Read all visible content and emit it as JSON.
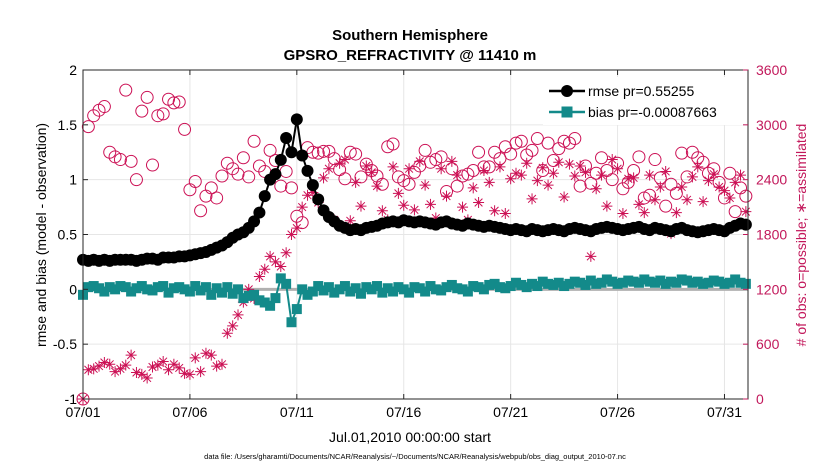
{
  "chart_data": {
    "type": "line",
    "title": "Southern Hemisphere",
    "subtitle": "GPSRO_REFRACTIVITY @ 11410 m",
    "xlabel": "Jul.01,2010 00:00:00 start",
    "ylabel": "rmse and bias (model - observation)",
    "ylabel_right": "# of obs: o=possible; ∗=assimilated",
    "footnote": "data file: /Users/gharamti/Documents/NCAR/Reanalysis/~/Documents/NCAR/Reanalysis/webpub/obs_diag_output_2010-07.nc",
    "x_range": [
      1,
      32.1
    ],
    "ylim": [
      -1,
      2
    ],
    "ylim_right": [
      0,
      3600
    ],
    "xticks": [
      1,
      6,
      11,
      16,
      21,
      26,
      31
    ],
    "xtick_labels": [
      "07/01",
      "07/06",
      "07/11",
      "07/16",
      "07/21",
      "07/26",
      "07/31"
    ],
    "yticks_left": [
      -1,
      -0.5,
      0,
      0.5,
      1,
      1.5,
      2
    ],
    "ytick_labels_left": [
      "-1",
      "-0.5",
      "0",
      "0.5",
      "1",
      "1.5",
      "2"
    ],
    "yticks_right": [
      0,
      600,
      1200,
      1800,
      2400,
      3000,
      3600
    ],
    "ytick_labels_right": [
      "0",
      "600",
      "1200",
      "1800",
      "2400",
      "3000",
      "3600"
    ],
    "grid": true,
    "legend_position": "top-right",
    "colors": {
      "rmse": "#000000",
      "bias": "#138a8a",
      "obs": "#cc1155",
      "zero_line": "#b0b0b0"
    },
    "series": [
      {
        "name": "rmse pr=0.55255",
        "axis": "left",
        "marker": "circle",
        "x": [
          1,
          1.25,
          1.5,
          1.75,
          2,
          2.25,
          2.5,
          2.75,
          3,
          3.25,
          3.5,
          3.75,
          4,
          4.25,
          4.5,
          4.75,
          5,
          5.25,
          5.5,
          5.75,
          6,
          6.25,
          6.5,
          6.75,
          7,
          7.25,
          7.5,
          7.75,
          8,
          8.25,
          8.5,
          8.75,
          9,
          9.25,
          9.5,
          9.75,
          10,
          10.25,
          10.5,
          10.75,
          11,
          11.25,
          11.5,
          11.75,
          12,
          12.25,
          12.5,
          12.75,
          13,
          13.25,
          13.5,
          13.75,
          14,
          14.25,
          14.5,
          14.75,
          15,
          15.25,
          15.5,
          15.75,
          16,
          16.25,
          16.5,
          16.75,
          17,
          17.25,
          17.5,
          17.75,
          18,
          18.25,
          18.5,
          18.75,
          19,
          19.25,
          19.5,
          19.75,
          20,
          20.25,
          20.5,
          20.75,
          21,
          21.25,
          21.5,
          21.75,
          22,
          22.25,
          22.5,
          22.75,
          23,
          23.25,
          23.5,
          23.75,
          24,
          24.25,
          24.5,
          24.75,
          25,
          25.25,
          25.5,
          25.75,
          26,
          26.25,
          26.5,
          26.75,
          27,
          27.25,
          27.5,
          27.75,
          28,
          28.25,
          28.5,
          28.75,
          29,
          29.25,
          29.5,
          29.75,
          30,
          30.25,
          30.5,
          30.75,
          31,
          31.25,
          31.5,
          31.75,
          32
        ],
        "values": [
          0.27,
          0.26,
          0.27,
          0.26,
          0.27,
          0.26,
          0.27,
          0.27,
          0.27,
          0.27,
          0.26,
          0.27,
          0.28,
          0.28,
          0.27,
          0.29,
          0.29,
          0.29,
          0.3,
          0.3,
          0.31,
          0.32,
          0.33,
          0.34,
          0.36,
          0.38,
          0.4,
          0.43,
          0.47,
          0.5,
          0.52,
          0.56,
          0.62,
          0.7,
          0.85,
          1.0,
          1.05,
          1.18,
          1.38,
          1.25,
          1.55,
          1.22,
          1.08,
          0.95,
          0.82,
          0.72,
          0.66,
          0.62,
          0.58,
          0.56,
          0.54,
          0.55,
          0.54,
          0.56,
          0.57,
          0.58,
          0.6,
          0.61,
          0.62,
          0.61,
          0.63,
          0.62,
          0.61,
          0.62,
          0.61,
          0.6,
          0.59,
          0.61,
          0.62,
          0.6,
          0.59,
          0.58,
          0.6,
          0.59,
          0.58,
          0.57,
          0.58,
          0.57,
          0.56,
          0.55,
          0.54,
          0.55,
          0.54,
          0.53,
          0.55,
          0.54,
          0.53,
          0.54,
          0.55,
          0.54,
          0.53,
          0.55,
          0.56,
          0.55,
          0.54,
          0.53,
          0.55,
          0.56,
          0.57,
          0.56,
          0.55,
          0.54,
          0.55,
          0.56,
          0.57,
          0.55,
          0.54,
          0.56,
          0.55,
          0.54,
          0.53,
          0.55,
          0.56,
          0.54,
          0.53,
          0.52,
          0.53,
          0.54,
          0.55,
          0.54,
          0.53,
          0.56,
          0.58,
          0.6,
          0.59
        ]
      },
      {
        "name": "bias pr=-0.00087663",
        "axis": "left",
        "marker": "square",
        "x": [
          1,
          1.25,
          1.5,
          1.75,
          2,
          2.25,
          2.5,
          2.75,
          3,
          3.25,
          3.5,
          3.75,
          4,
          4.25,
          4.5,
          4.75,
          5,
          5.25,
          5.5,
          5.75,
          6,
          6.25,
          6.5,
          6.75,
          7,
          7.25,
          7.5,
          7.75,
          8,
          8.25,
          8.5,
          8.75,
          9,
          9.25,
          9.5,
          9.75,
          10,
          10.25,
          10.5,
          10.75,
          11,
          11.25,
          11.5,
          11.75,
          12,
          12.25,
          12.5,
          12.75,
          13,
          13.25,
          13.5,
          13.75,
          14,
          14.25,
          14.5,
          14.75,
          15,
          15.25,
          15.5,
          15.75,
          16,
          16.25,
          16.5,
          16.75,
          17,
          17.25,
          17.5,
          17.75,
          18,
          18.25,
          18.5,
          18.75,
          19,
          19.25,
          19.5,
          19.75,
          20,
          20.25,
          20.5,
          20.75,
          21,
          21.25,
          21.5,
          21.75,
          22,
          22.25,
          22.5,
          22.75,
          23,
          23.25,
          23.5,
          23.75,
          24,
          24.25,
          24.5,
          24.75,
          25,
          25.25,
          25.5,
          25.75,
          26,
          26.25,
          26.5,
          26.75,
          27,
          27.25,
          27.5,
          27.75,
          28,
          28.25,
          28.5,
          28.75,
          29,
          29.25,
          29.5,
          29.75,
          30,
          30.25,
          30.5,
          30.75,
          31,
          31.25,
          31.5,
          31.75,
          32
        ],
        "values": [
          -0.05,
          0.02,
          0.03,
          0.01,
          -0.02,
          0.02,
          0.0,
          0.03,
          0.02,
          -0.02,
          0.01,
          0.03,
          0.0,
          -0.01,
          0.02,
          0.03,
          -0.03,
          0.01,
          0.02,
          0.0,
          -0.02,
          0.03,
          -0.01,
          0.02,
          -0.05,
          0.01,
          -0.03,
          0.02,
          -0.04,
          0.0,
          -0.08,
          -0.06,
          -0.05,
          -0.1,
          -0.12,
          -0.15,
          -0.08,
          0.1,
          0.05,
          -0.3,
          -0.18,
          0.0,
          -0.05,
          -0.02,
          0.03,
          -0.01,
          0.02,
          -0.03,
          0.0,
          0.03,
          -0.02,
          0.01,
          -0.04,
          0.02,
          0.0,
          0.03,
          -0.03,
          0.01,
          -0.02,
          0.02,
          0.0,
          -0.03,
          0.02,
          0.01,
          -0.02,
          0.03,
          0.0,
          -0.01,
          0.02,
          0.04,
          0.01,
          0.0,
          -0.02,
          0.03,
          0.02,
          0.0,
          0.04,
          0.05,
          0.02,
          0.01,
          0.03,
          0.06,
          0.04,
          0.02,
          0.05,
          0.03,
          0.07,
          0.05,
          0.04,
          0.06,
          0.03,
          0.05,
          0.07,
          0.06,
          0.04,
          0.08,
          0.05,
          0.06,
          0.09,
          0.07,
          0.05,
          0.06,
          0.08,
          0.07,
          0.06,
          0.09,
          0.07,
          0.06,
          0.08,
          0.05,
          0.07,
          0.06,
          0.09,
          0.08,
          0.06,
          0.07,
          0.05,
          0.06,
          0.08,
          0.07,
          0.05,
          0.06,
          0.09,
          0.06,
          0.05
        ]
      },
      {
        "name": "possible",
        "axis": "right",
        "marker": "open-circle",
        "x": [
          1,
          1.25,
          1.5,
          1.75,
          2,
          2.25,
          2.5,
          2.75,
          3,
          3.25,
          3.5,
          3.75,
          4,
          4.25,
          4.5,
          4.75,
          5,
          5.25,
          5.5,
          5.75,
          6,
          6.25,
          6.5,
          6.75,
          7,
          7.25,
          7.5,
          7.75,
          8,
          8.25,
          8.5,
          8.75,
          9,
          9.25,
          9.5,
          9.75,
          10,
          10.25,
          10.5,
          10.75,
          11,
          11.25,
          11.5,
          11.75,
          12,
          12.25,
          12.5,
          12.75,
          13,
          13.25,
          13.5,
          13.75,
          14,
          14.25,
          14.5,
          14.75,
          15,
          15.25,
          15.5,
          15.75,
          16,
          16.25,
          16.5,
          16.75,
          17,
          17.25,
          17.5,
          17.75,
          18,
          18.25,
          18.5,
          18.75,
          19,
          19.25,
          19.5,
          19.75,
          20,
          20.25,
          20.5,
          20.75,
          21,
          21.25,
          21.5,
          21.75,
          22,
          22.25,
          22.5,
          22.75,
          23,
          23.25,
          23.5,
          23.75,
          24,
          24.25,
          24.5,
          24.75,
          25,
          25.25,
          25.5,
          25.75,
          26,
          26.25,
          26.5,
          26.75,
          27,
          27.25,
          27.5,
          27.75,
          28,
          28.25,
          28.5,
          28.75,
          29,
          29.25,
          29.5,
          29.75,
          30,
          30.25,
          30.5,
          30.75,
          31,
          31.25,
          31.5,
          31.75,
          32
        ],
        "values": [
          0,
          2980,
          3100,
          3160,
          3200,
          2700,
          2650,
          2620,
          3380,
          2600,
          2400,
          3150,
          3300,
          2560,
          3100,
          3120,
          3280,
          3240,
          3250,
          2950,
          2290,
          2380,
          2060,
          2220,
          2310,
          2200,
          2440,
          2580,
          2520,
          2460,
          2640,
          2430,
          2820,
          2550,
          2490,
          2720,
          2610,
          2330,
          2490,
          2310,
          2000,
          1930,
          2750,
          2700,
          2690,
          2710,
          2710,
          2630,
          2510,
          2410,
          2700,
          2680,
          2430,
          2570,
          2500,
          2440,
          2350,
          2760,
          2790,
          2430,
          2390,
          2350,
          2480,
          2550,
          2720,
          2590,
          2620,
          2650,
          2270,
          2520,
          2330,
          2440,
          2460,
          2500,
          2700,
          2540,
          2540,
          2700,
          2630,
          2760,
          2680,
          2800,
          2820,
          2670,
          2720,
          2850,
          2500,
          2800,
          2610,
          2740,
          2820,
          2800,
          2850,
          2330,
          2550,
          2360,
          2470,
          2640,
          2500,
          2400,
          2580,
          2300,
          2370,
          2500,
          2650,
          2200,
          2230,
          2620,
          2420,
          2110,
          2350,
          2250,
          2690,
          2430,
          2700,
          2640,
          2590,
          2470,
          2520,
          2370,
          2200,
          2470,
          2050,
          2310,
          2220
        ]
      },
      {
        "name": "assimilated",
        "axis": "right",
        "marker": "asterisk",
        "x": [
          1,
          1.25,
          1.5,
          1.75,
          2,
          2.25,
          2.5,
          2.75,
          3,
          3.25,
          3.5,
          3.75,
          4,
          4.25,
          4.5,
          4.75,
          5,
          5.25,
          5.5,
          5.75,
          6,
          6.25,
          6.5,
          6.75,
          7,
          7.25,
          7.5,
          7.75,
          8,
          8.25,
          8.5,
          8.75,
          9,
          9.25,
          9.5,
          9.75,
          10,
          10.25,
          10.5,
          10.75,
          11,
          11.25,
          11.5,
          11.75,
          12,
          12.25,
          12.5,
          12.75,
          13,
          13.25,
          13.5,
          13.75,
          14,
          14.25,
          14.5,
          14.75,
          15,
          15.25,
          15.5,
          15.75,
          16,
          16.25,
          16.5,
          16.75,
          17,
          17.25,
          17.5,
          17.75,
          18,
          18.25,
          18.5,
          18.75,
          19,
          19.25,
          19.5,
          19.75,
          20,
          20.25,
          20.5,
          20.75,
          21,
          21.25,
          21.5,
          21.75,
          22,
          22.25,
          22.5,
          22.75,
          23,
          23.25,
          23.5,
          23.75,
          24,
          24.25,
          24.5,
          24.75,
          25,
          25.25,
          25.5,
          25.75,
          26,
          26.25,
          26.5,
          26.75,
          27,
          27.25,
          27.5,
          27.75,
          28,
          28.25,
          28.5,
          28.75,
          29,
          29.25,
          29.5,
          29.75,
          30,
          30.25,
          30.5,
          30.75,
          31,
          31.25,
          31.5,
          31.75,
          32
        ],
        "values": [
          0,
          320,
          330,
          360,
          400,
          380,
          300,
          330,
          370,
          480,
          290,
          270,
          230,
          350,
          370,
          410,
          320,
          380,
          340,
          280,
          270,
          450,
          300,
          500,
          480,
          360,
          380,
          720,
          800,
          920,
          1060,
          1200,
          1100,
          1340,
          1420,
          1560,
          1500,
          1450,
          1600,
          1800,
          1870,
          2100,
          2230,
          2260,
          2150,
          2420,
          2520,
          1960,
          2580,
          2620,
          1950,
          2370,
          2110,
          2550,
          2480,
          2330,
          2060,
          1960,
          2540,
          2250,
          2120,
          2520,
          2070,
          2600,
          2340,
          2130,
          1980,
          2520,
          2220,
          2600,
          2450,
          2100,
          1960,
          2310,
          2150,
          2500,
          2370,
          2060,
          2540,
          2030,
          2410,
          2470,
          2450,
          2580,
          2190,
          2390,
          2530,
          2340,
          2470,
          2590,
          2210,
          2570,
          2440,
          2550,
          2480,
          1560,
          2300,
          2450,
          2110,
          2620,
          2520,
          2030,
          2410,
          2420,
          2130,
          2040,
          2450,
          2180,
          2320,
          2490,
          1810,
          2040,
          2320,
          2180,
          2430,
          2540,
          2160,
          2390,
          2460,
          2320,
          2280,
          2200,
          2370,
          2450,
          2050
        ]
      }
    ]
  }
}
